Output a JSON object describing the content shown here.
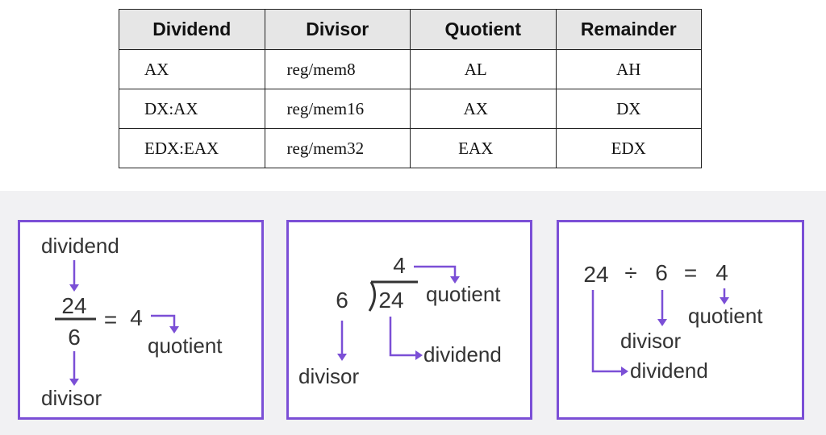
{
  "table": {
    "headers": [
      "Dividend",
      "Divisor",
      "Quotient",
      "Remainder"
    ],
    "rows": [
      [
        "AX",
        "reg/mem8",
        "AL",
        "AH"
      ],
      [
        "DX:AX",
        "reg/mem16",
        "AX",
        "DX"
      ],
      [
        "EDX:EAX",
        "reg/mem32",
        "EAX",
        "EDX"
      ]
    ]
  },
  "panels": {
    "fraction": {
      "dividend_label": "dividend",
      "numerator": "24",
      "denominator": "6",
      "equals": "=",
      "result": "4",
      "quotient_label": "quotient",
      "divisor_label": "divisor"
    },
    "long_division": {
      "quotient_value": "4",
      "quotient_label": "quotient",
      "divisor_value": "6",
      "dividend_value": "24",
      "dividend_label": "dividend",
      "divisor_label": "divisor"
    },
    "equation": {
      "dividend_value": "24",
      "operator": "÷",
      "divisor_value": "6",
      "equals": "=",
      "result": "4",
      "quotient_label": "quotient",
      "divisor_label": "divisor",
      "dividend_label": "dividend"
    }
  },
  "colors": {
    "accent": "#7b4fd6",
    "header_bg": "#e6e6e6",
    "band_bg": "#f1f1f3",
    "text": "#333333"
  }
}
